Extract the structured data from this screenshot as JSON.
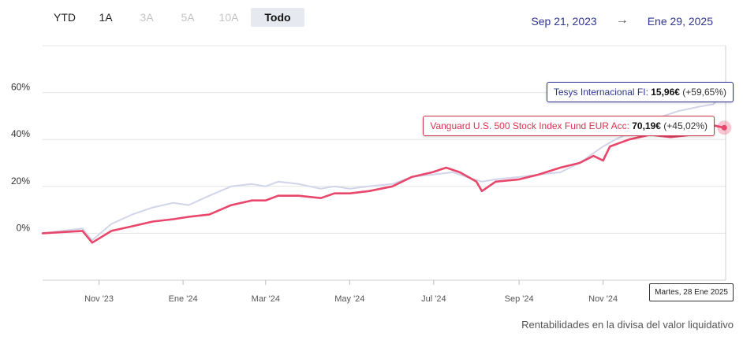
{
  "range_buttons": [
    {
      "label": "YTD",
      "state": "normal"
    },
    {
      "label": "1A",
      "state": "normal"
    },
    {
      "label": "3A",
      "state": "disabled"
    },
    {
      "label": "5A",
      "state": "disabled"
    },
    {
      "label": "10A",
      "state": "disabled"
    },
    {
      "label": "Todo",
      "state": "active"
    }
  ],
  "date_range": {
    "start": "Sep 21, 2023",
    "arrow": "→",
    "end": "Ene 29, 2025"
  },
  "footnote": "Rentabilidades en la divisa del valor liquidativo",
  "tooltips": {
    "series_a": {
      "name": "Tesys Internacional FI",
      "price": "15,96€",
      "change": "(+59,65%)"
    },
    "series_b": {
      "name": "Vanguard U.S. 500 Stock Index Fund EUR Acc",
      "price": "70,19€",
      "change": "(+45,02%)"
    },
    "date": "Martes, 28 Ene 2025"
  },
  "colors": {
    "series_a": "#d2d4ea",
    "series_b": "#e8466a",
    "tooltip_a": "#2f3590",
    "tooltip_b": "#d6334f",
    "grid": "#e4e4e4"
  },
  "chart_data": {
    "type": "line",
    "x_start": "2023-09-21",
    "x_end": "2025-01-29",
    "xticks": [
      {
        "label": "Nov '23",
        "date": "2023-11-01"
      },
      {
        "label": "Ene '24",
        "date": "2024-01-01"
      },
      {
        "label": "Mar '24",
        "date": "2024-03-01"
      },
      {
        "label": "May '24",
        "date": "2024-05-01"
      },
      {
        "label": "Jul '24",
        "date": "2024-07-01"
      },
      {
        "label": "Sep '24",
        "date": "2024-09-01"
      },
      {
        "label": "Nov '24",
        "date": "2024-11-01"
      }
    ],
    "yticks": [
      {
        "label": "0%",
        "value": 0
      },
      {
        "label": "20%",
        "value": 20
      },
      {
        "label": "40%",
        "value": 40
      },
      {
        "label": "60%",
        "value": 60
      }
    ],
    "ylim": [
      -20,
      80
    ],
    "grid": true,
    "series": [
      {
        "name": "Tesys Internacional FI",
        "x": [
          "2023-09-21",
          "2023-10-05",
          "2023-10-20",
          "2023-10-27",
          "2023-11-10",
          "2023-11-25",
          "2023-12-10",
          "2023-12-25",
          "2024-01-05",
          "2024-01-20",
          "2024-02-05",
          "2024-02-20",
          "2024-03-01",
          "2024-03-10",
          "2024-03-25",
          "2024-04-10",
          "2024-04-20",
          "2024-05-01",
          "2024-05-15",
          "2024-06-01",
          "2024-06-15",
          "2024-06-30",
          "2024-07-15",
          "2024-07-25",
          "2024-08-05",
          "2024-08-15",
          "2024-09-01",
          "2024-09-15",
          "2024-10-01",
          "2024-10-15",
          "2024-11-01",
          "2024-11-10",
          "2024-11-25",
          "2024-12-10",
          "2024-12-25",
          "2025-01-10",
          "2025-01-20",
          "2025-01-28"
        ],
        "values": [
          0,
          1,
          2,
          -3,
          4,
          8,
          11,
          13,
          12,
          16,
          20,
          21,
          20,
          22,
          21,
          19,
          20,
          19,
          20,
          21,
          24,
          25,
          26,
          24,
          22,
          23,
          24,
          25,
          26,
          30,
          37,
          40,
          44,
          49,
          52,
          54,
          55,
          59.65
        ]
      },
      {
        "name": "Vanguard U.S. 500 Stock Index Fund EUR Acc",
        "x": [
          "2023-09-21",
          "2023-10-05",
          "2023-10-20",
          "2023-10-27",
          "2023-11-10",
          "2023-11-25",
          "2023-12-10",
          "2023-12-25",
          "2024-01-05",
          "2024-01-20",
          "2024-02-05",
          "2024-02-20",
          "2024-03-01",
          "2024-03-10",
          "2024-03-25",
          "2024-04-10",
          "2024-04-20",
          "2024-05-01",
          "2024-05-15",
          "2024-06-01",
          "2024-06-15",
          "2024-06-30",
          "2024-07-10",
          "2024-07-20",
          "2024-08-01",
          "2024-08-05",
          "2024-08-15",
          "2024-09-01",
          "2024-09-15",
          "2024-10-01",
          "2024-10-15",
          "2024-10-25",
          "2024-11-01",
          "2024-11-06",
          "2024-11-20",
          "2024-12-05",
          "2024-12-20",
          "2025-01-05",
          "2025-01-20",
          "2025-01-28"
        ],
        "values": [
          0,
          0.5,
          1,
          -4,
          1,
          3,
          5,
          6,
          7,
          8,
          12,
          14,
          14,
          16,
          16,
          15,
          17,
          17,
          18,
          20,
          24,
          26,
          28,
          26,
          22,
          18,
          22,
          23,
          25,
          28,
          30,
          33,
          31,
          37,
          40,
          42,
          41,
          42,
          46,
          45.02
        ]
      }
    ]
  }
}
